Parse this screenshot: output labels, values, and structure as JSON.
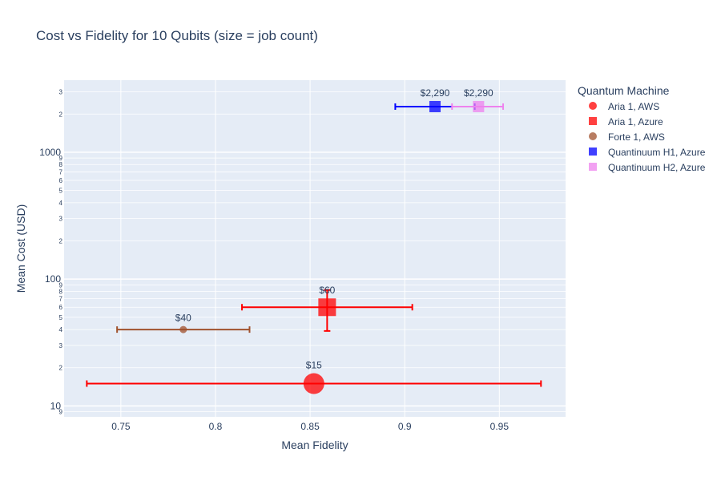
{
  "chart_data": {
    "type": "scatter",
    "title": "Cost vs Fidelity for 10 Qubits (size = job count)",
    "xlabel": "Mean Fidelity",
    "ylabel": "Mean Cost (USD)",
    "xlim": [
      0.72,
      0.985
    ],
    "ylim": [
      8.2,
      3700
    ],
    "y_scale": "log",
    "grid": true,
    "legend_title": "Quantum Machine",
    "legend_position": "right",
    "x_ticks": [
      {
        "value": 0.75,
        "label": "0.75"
      },
      {
        "value": 0.8,
        "label": "0.8"
      },
      {
        "value": 0.85,
        "label": "0.85"
      },
      {
        "value": 0.9,
        "label": "0.9"
      },
      {
        "value": 0.95,
        "label": "0.95"
      }
    ],
    "y_major_ticks": [
      {
        "value": 10,
        "label": "10"
      },
      {
        "value": 100,
        "label": "100"
      },
      {
        "value": 1000,
        "label": "1000"
      }
    ],
    "y_minor_ticks": [
      {
        "value": 2,
        "label": "2"
      },
      {
        "value": 3,
        "label": "3"
      },
      {
        "value": 4,
        "label": "4"
      },
      {
        "value": 5,
        "label": "5"
      },
      {
        "value": 6,
        "label": "6"
      },
      {
        "value": 7,
        "label": "7"
      },
      {
        "value": 8,
        "label": "8"
      },
      {
        "value": 9,
        "label": "9"
      }
    ],
    "series": [
      {
        "name": "Aria 1, AWS",
        "symbol": "circle",
        "color": "#ff0000",
        "x": 0.852,
        "y": 15,
        "x_err_low": 0.732,
        "x_err_high": 0.972,
        "label": "$15",
        "job_count_size": 26
      },
      {
        "name": "Aria 1, Azure",
        "symbol": "square",
        "color": "#ff0000",
        "x": 0.859,
        "y": 60,
        "x_err_low": 0.814,
        "x_err_high": 0.904,
        "y_err_low": 39,
        "y_err_high": 82,
        "label": "$60",
        "job_count_size": 22
      },
      {
        "name": "Forte 1, AWS",
        "symbol": "circle",
        "color": "#a0522d",
        "x": 0.783,
        "y": 40,
        "x_err_low": 0.748,
        "x_err_high": 0.818,
        "label": "$40",
        "job_count_size": 9
      },
      {
        "name": "Quantinuum H1, Azure",
        "symbol": "square",
        "color": "#0000ff",
        "x": 0.916,
        "y": 2290,
        "x_err_low": 0.895,
        "x_err_high": 0.937,
        "label": "$2,290",
        "job_count_size": 14
      },
      {
        "name": "Quantinuum H2, Azure",
        "symbol": "square",
        "color": "#ee82ee",
        "x": 0.939,
        "y": 2290,
        "x_err_low": 0.925,
        "x_err_high": 0.952,
        "label": "$2,290",
        "job_count_size": 14
      }
    ]
  }
}
